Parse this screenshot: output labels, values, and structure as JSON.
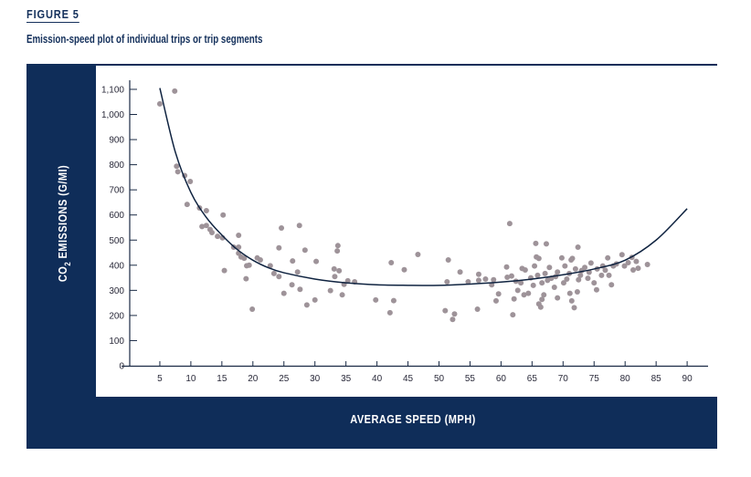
{
  "figure_label": "FIGURE 5",
  "figure_title": "Emission-speed plot of individual trips or trip segments",
  "chart_data": {
    "type": "scatter",
    "title": "Emission-speed plot of individual trips or trip segments",
    "xlabel": "AVERAGE SPEED (MPH)",
    "ylabel_parts": {
      "pre": "CO",
      "sub": "2",
      "post": " EMISSIONS (G/MI)"
    },
    "xlim": [
      0,
      90
    ],
    "ylim": [
      0,
      1100
    ],
    "x_ticks": [
      5,
      10,
      15,
      20,
      25,
      30,
      35,
      40,
      45,
      50,
      55,
      60,
      65,
      70,
      75,
      80,
      85,
      90
    ],
    "x_tick_labels": [
      "5",
      "10",
      "15",
      "20",
      "25",
      "30",
      "35",
      "40",
      "45",
      "50",
      "55",
      "60",
      "65",
      "70",
      "75",
      "80",
      "85",
      "90"
    ],
    "y_ticks": [
      0,
      100,
      200,
      300,
      400,
      500,
      600,
      700,
      800,
      900,
      1000,
      1100
    ],
    "y_tick_labels": [
      "0",
      "100",
      "200",
      "300",
      "400",
      "500",
      "600",
      "700",
      "800",
      "900",
      "1,000",
      "1,100"
    ],
    "grid": false,
    "colors": {
      "points": "#9e9399",
      "curve": "#0f2340",
      "panel": "#0f2d59"
    },
    "points": [
      [
        5.0,
        1042
      ],
      [
        7.4,
        1093
      ],
      [
        7.7,
        794
      ],
      [
        7.9,
        772
      ],
      [
        9.0,
        757
      ],
      [
        9.9,
        733
      ],
      [
        9.4,
        642
      ],
      [
        11.4,
        628
      ],
      [
        12.5,
        617
      ],
      [
        15.2,
        600
      ],
      [
        11.8,
        554
      ],
      [
        12.5,
        558
      ],
      [
        13.1,
        542
      ],
      [
        13.4,
        530
      ],
      [
        14.3,
        515
      ],
      [
        15.1,
        509
      ],
      [
        17.7,
        519
      ],
      [
        16.9,
        472
      ],
      [
        17.7,
        472
      ],
      [
        17.7,
        448
      ],
      [
        18.1,
        433
      ],
      [
        18.6,
        428
      ],
      [
        19.0,
        398
      ],
      [
        19.4,
        400
      ],
      [
        15.4,
        379
      ],
      [
        18.9,
        346
      ],
      [
        19.9,
        225
      ],
      [
        20.7,
        429
      ],
      [
        21.2,
        421
      ],
      [
        22.8,
        398
      ],
      [
        23.4,
        367
      ],
      [
        24.2,
        355
      ],
      [
        24.2,
        469
      ],
      [
        24.6,
        548
      ],
      [
        27.5,
        558
      ],
      [
        28.4,
        460
      ],
      [
        26.4,
        417
      ],
      [
        27.2,
        373
      ],
      [
        26.3,
        322
      ],
      [
        27.6,
        304
      ],
      [
        25.0,
        288
      ],
      [
        28.7,
        242
      ],
      [
        30.0,
        262
      ],
      [
        30.2,
        415
      ],
      [
        32.5,
        299
      ],
      [
        33.1,
        385
      ],
      [
        33.2,
        355
      ],
      [
        33.9,
        378
      ],
      [
        33.6,
        457
      ],
      [
        33.7,
        478
      ],
      [
        34.4,
        282
      ],
      [
        34.7,
        324
      ],
      [
        35.3,
        338
      ],
      [
        36.4,
        334
      ],
      [
        39.8,
        262
      ],
      [
        42.7,
        259
      ],
      [
        42.1,
        211
      ],
      [
        42.3,
        410
      ],
      [
        44.4,
        382
      ],
      [
        46.6,
        443
      ],
      [
        51.5,
        421
      ],
      [
        51.3,
        334
      ],
      [
        53.4,
        373
      ],
      [
        54.7,
        334
      ],
      [
        51.0,
        219
      ],
      [
        52.5,
        206
      ],
      [
        52.2,
        184
      ],
      [
        56.2,
        225
      ],
      [
        56.4,
        364
      ],
      [
        56.4,
        340
      ],
      [
        57.5,
        345
      ],
      [
        58.8,
        342
      ],
      [
        58.5,
        322
      ],
      [
        59.6,
        286
      ],
      [
        59.2,
        258
      ],
      [
        60.9,
        393
      ],
      [
        61.4,
        566
      ],
      [
        61.0,
        352
      ],
      [
        61.9,
        203
      ],
      [
        62.1,
        266
      ],
      [
        61.7,
        357
      ],
      [
        62.4,
        336
      ],
      [
        62.7,
        300
      ],
      [
        63.2,
        330
      ],
      [
        63.4,
        387
      ],
      [
        63.9,
        381
      ],
      [
        63.7,
        282
      ],
      [
        64.4,
        288
      ],
      [
        65.4,
        397
      ],
      [
        65.7,
        433
      ],
      [
        66.1,
        427
      ],
      [
        65.6,
        487
      ],
      [
        67.3,
        485
      ],
      [
        66.1,
        246
      ],
      [
        66.4,
        233
      ],
      [
        66.6,
        264
      ],
      [
        66.9,
        282
      ],
      [
        65.9,
        360
      ],
      [
        66.6,
        330
      ],
      [
        67.1,
        367
      ],
      [
        67.8,
        391
      ],
      [
        68.1,
        348
      ],
      [
        68.6,
        312
      ],
      [
        69.1,
        270
      ],
      [
        69.1,
        373
      ],
      [
        69.8,
        429
      ],
      [
        70.1,
        330
      ],
      [
        70.3,
        397
      ],
      [
        71.0,
        367
      ],
      [
        71.3,
        421
      ],
      [
        71.5,
        427
      ],
      [
        71.1,
        288
      ],
      [
        71.4,
        258
      ],
      [
        71.8,
        231
      ],
      [
        72.3,
        294
      ],
      [
        72.4,
        472
      ],
      [
        72.0,
        385
      ],
      [
        72.5,
        342
      ],
      [
        73.0,
        379
      ],
      [
        73.5,
        391
      ],
      [
        74.0,
        348
      ],
      [
        74.5,
        409
      ],
      [
        75.0,
        330
      ],
      [
        75.4,
        302
      ],
      [
        75.5,
        385
      ],
      [
        76.2,
        360
      ],
      [
        76.4,
        397
      ],
      [
        77.2,
        429
      ],
      [
        77.4,
        360
      ],
      [
        77.8,
        322
      ],
      [
        78.1,
        397
      ],
      [
        79.5,
        442
      ],
      [
        79.9,
        397
      ],
      [
        81.1,
        431
      ],
      [
        81.3,
        381
      ],
      [
        82.1,
        388
      ],
      [
        83.6,
        403
      ],
      [
        81.8,
        415
      ],
      [
        64.8,
        350
      ],
      [
        65.2,
        320
      ],
      [
        67.5,
        340
      ],
      [
        68.8,
        355
      ],
      [
        70.6,
        345
      ],
      [
        72.8,
        360
      ],
      [
        74.2,
        372
      ],
      [
        76.8,
        380
      ],
      [
        78.6,
        405
      ],
      [
        80.5,
        410
      ]
    ],
    "fit_curve": [
      [
        5,
        1105
      ],
      [
        7.5,
        850
      ],
      [
        10,
        690
      ],
      [
        12.5,
        590
      ],
      [
        15,
        520
      ],
      [
        17.5,
        462
      ],
      [
        20,
        420
      ],
      [
        22.5,
        390
      ],
      [
        25,
        370
      ],
      [
        30,
        345
      ],
      [
        35,
        330
      ],
      [
        40,
        322
      ],
      [
        45,
        320
      ],
      [
        50,
        320
      ],
      [
        55,
        325
      ],
      [
        60,
        333
      ],
      [
        65,
        345
      ],
      [
        70,
        362
      ],
      [
        75,
        385
      ],
      [
        80,
        420
      ],
      [
        85,
        500
      ],
      [
        90,
        625
      ]
    ]
  }
}
